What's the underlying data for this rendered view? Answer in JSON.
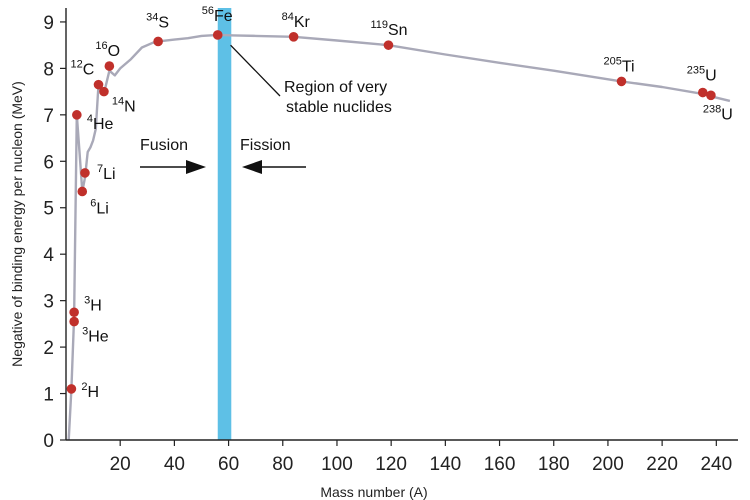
{
  "chart_data": {
    "type": "scatter",
    "xlabel": "Mass number (A)",
    "ylabel": "Negative of binding energy per nucleon (MeV)",
    "xlim": [
      0,
      248
    ],
    "ylim": [
      0,
      9.3
    ],
    "x_ticks": [
      20,
      40,
      60,
      80,
      100,
      120,
      140,
      160,
      180,
      200,
      220,
      240
    ],
    "y_ticks": [
      0,
      1,
      2,
      3,
      4,
      5,
      6,
      7,
      8,
      9
    ],
    "curve": {
      "x": [
        1,
        2,
        3,
        4,
        5,
        6,
        7,
        8,
        9,
        10,
        11,
        12,
        13,
        14,
        15,
        16,
        18,
        20,
        24,
        28,
        32,
        34,
        40,
        45,
        50,
        56,
        62,
        70,
        84,
        100,
        119,
        140,
        160,
        180,
        205,
        220,
        235,
        238,
        245
      ],
      "y": [
        0.0,
        1.1,
        2.65,
        7.0,
        6.2,
        5.35,
        5.65,
        6.2,
        6.3,
        6.45,
        6.7,
        7.65,
        7.5,
        7.45,
        7.7,
        7.95,
        7.85,
        8.0,
        8.2,
        8.45,
        8.55,
        8.58,
        8.62,
        8.65,
        8.7,
        8.72,
        8.71,
        8.7,
        8.68,
        8.6,
        8.5,
        8.3,
        8.12,
        7.95,
        7.72,
        7.6,
        7.45,
        7.4,
        7.3
      ]
    },
    "points": [
      {
        "mass": "2",
        "el": "H",
        "x": 2,
        "y": 1.1,
        "lx": 10,
        "ly": 8
      },
      {
        "mass": "3",
        "el": "H",
        "x": 3,
        "y": 2.75,
        "lx": 10,
        "ly": -2
      },
      {
        "mass": "3",
        "el": "He",
        "x": 3,
        "y": 2.55,
        "lx": 8,
        "ly": 20
      },
      {
        "mass": "4",
        "el": "He",
        "x": 4,
        "y": 7.0,
        "lx": 10,
        "ly": 14
      },
      {
        "mass": "6",
        "el": "Li",
        "x": 6,
        "y": 5.35,
        "lx": 8,
        "ly": 22
      },
      {
        "mass": "7",
        "el": "Li",
        "x": 7,
        "y": 5.75,
        "lx": 12,
        "ly": 6
      },
      {
        "mass": "12",
        "el": "C",
        "x": 12,
        "y": 7.65,
        "lx": -28,
        "ly": -10
      },
      {
        "mass": "14",
        "el": "N",
        "x": 14,
        "y": 7.5,
        "lx": 8,
        "ly": 20
      },
      {
        "mass": "16",
        "el": "O",
        "x": 16,
        "y": 8.05,
        "lx": -14,
        "ly": -10
      },
      {
        "mass": "34",
        "el": "S",
        "x": 34,
        "y": 8.58,
        "lx": -12,
        "ly": -14
      },
      {
        "mass": "56",
        "el": "Fe",
        "x": 56,
        "y": 8.72,
        "lx": -16,
        "ly": -14
      },
      {
        "mass": "84",
        "el": "Kr",
        "x": 84,
        "y": 8.68,
        "lx": -12,
        "ly": -10
      },
      {
        "mass": "119",
        "el": "Sn",
        "x": 119,
        "y": 8.5,
        "lx": -18,
        "ly": -10
      },
      {
        "mass": "205",
        "el": "Ti",
        "x": 205,
        "y": 7.72,
        "lx": -18,
        "ly": -10
      },
      {
        "mass": "235",
        "el": "U",
        "x": 235,
        "y": 7.48,
        "lx": -16,
        "ly": -12
      },
      {
        "mass": "238",
        "el": "U",
        "x": 238,
        "y": 7.42,
        "lx": -8,
        "ly": 24
      }
    ],
    "stable_band": {
      "x0": 56,
      "x1": 61
    },
    "annotations": {
      "region_line1": "Region of very",
      "region_line2": "stable nuclides",
      "fusion": "Fusion",
      "fission": "Fission"
    },
    "colors": {
      "curve": "#a9a9b8",
      "point": "#c0302b",
      "band": "#5ec0e6",
      "axis": "#222222"
    }
  }
}
